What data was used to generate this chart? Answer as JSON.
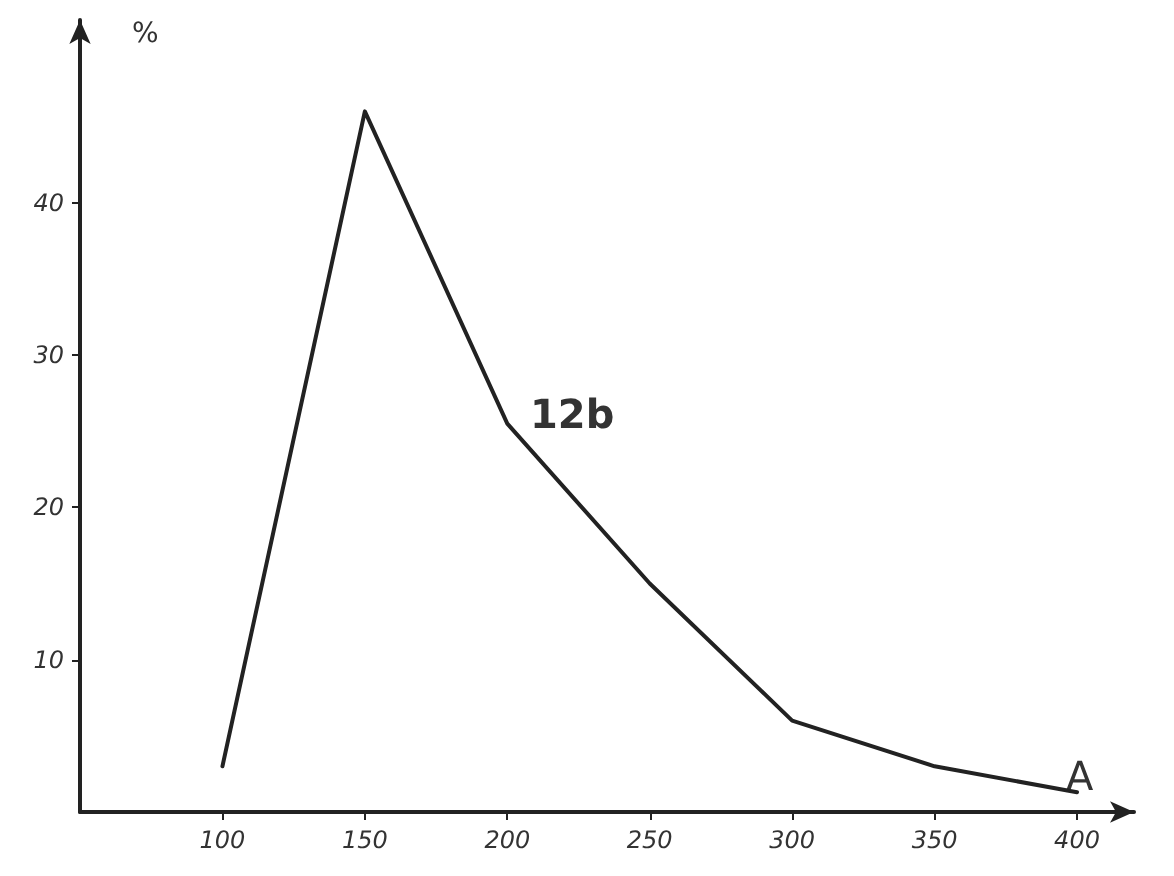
{
  "chart_data": {
    "type": "line",
    "xlabel": "A",
    "ylabel": "%",
    "x": [
      100,
      150,
      200,
      250,
      300,
      350,
      400
    ],
    "series": [
      {
        "color": "#222222",
        "values": [
          3,
          46,
          25.5,
          15,
          6,
          3,
          1.3
        ]
      }
    ],
    "xlim": [
      50,
      420
    ],
    "xticks": [
      100,
      150,
      200,
      250,
      300,
      350,
      400
    ],
    "ylim": [
      0,
      52
    ],
    "yticks": [
      10,
      20,
      30,
      40
    ],
    "annotations": [
      "12b"
    ],
    "grid": false,
    "marker": "none",
    "line_style": "solid"
  }
}
